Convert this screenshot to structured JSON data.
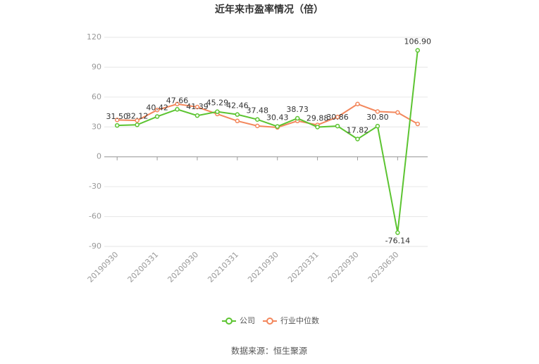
{
  "chart_data": {
    "type": "line",
    "title": "近年来市盈率情况（倍）",
    "categories": [
      "20190930",
      null,
      "20200331",
      null,
      "20200930",
      null,
      "20210331",
      null,
      "20210930",
      null,
      "20220331",
      null,
      "20220930",
      null,
      "20230630",
      null
    ],
    "series": [
      {
        "name": "公司",
        "color": "#5cc431",
        "values": [
          31.5,
          32.12,
          40.42,
          47.66,
          41.39,
          45.29,
          42.46,
          37.48,
          30.43,
          38.73,
          29.88,
          30.86,
          17.82,
          30.8,
          -76.14,
          106.9
        ],
        "value_labels": [
          "31.50",
          "32.12",
          "40.42",
          "47.66",
          "41.39",
          "45.29",
          "42.46",
          "37.48",
          "30.43",
          "38.73",
          "29.88",
          "30.86",
          "17.82",
          "30.80",
          "-76.14",
          "106.90"
        ]
      },
      {
        "name": "行业中位数",
        "color": "#f3875c",
        "values": [
          37,
          36.5,
          47,
          53,
          50,
          43,
          36,
          31,
          29.5,
          36,
          32,
          40,
          53,
          45.5,
          44.5,
          33
        ]
      }
    ],
    "ylim": [
      -90,
      120
    ],
    "yticks": [
      -90,
      -60,
      -30,
      0,
      30,
      60,
      90,
      120
    ],
    "grid": true,
    "source": "数据来源：恒生聚源"
  }
}
